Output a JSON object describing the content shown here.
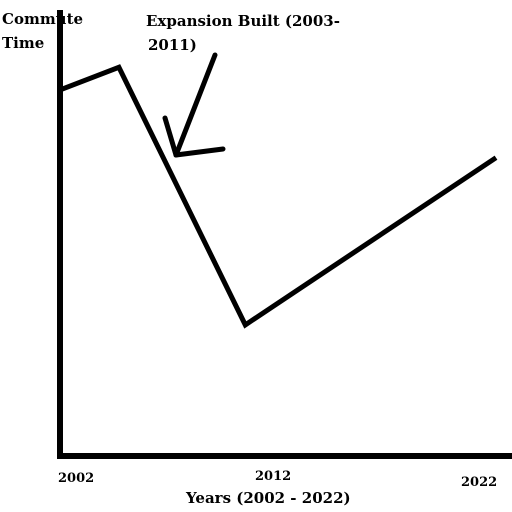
{
  "chart_data": {
    "type": "line",
    "ylabel_lines": [
      "Commute",
      "Time"
    ],
    "xlabel": "Years (2002 - 2022)",
    "x_ticks": [
      "2002",
      "2012",
      "2022"
    ],
    "xlim": [
      2002,
      2022
    ],
    "ylim": [
      0,
      100
    ],
    "grid": false,
    "series": [
      {
        "x": [
          2002,
          2004.7,
          2010.5,
          2022
        ],
        "y": [
          81,
          86,
          29,
          66
        ]
      }
    ],
    "annotation": {
      "lines": [
        "Expansion Built (2003-",
        "2011)"
      ],
      "points_to": {
        "x": 2007.2,
        "y": 68
      }
    },
    "colors": {
      "line": "#000000"
    }
  }
}
